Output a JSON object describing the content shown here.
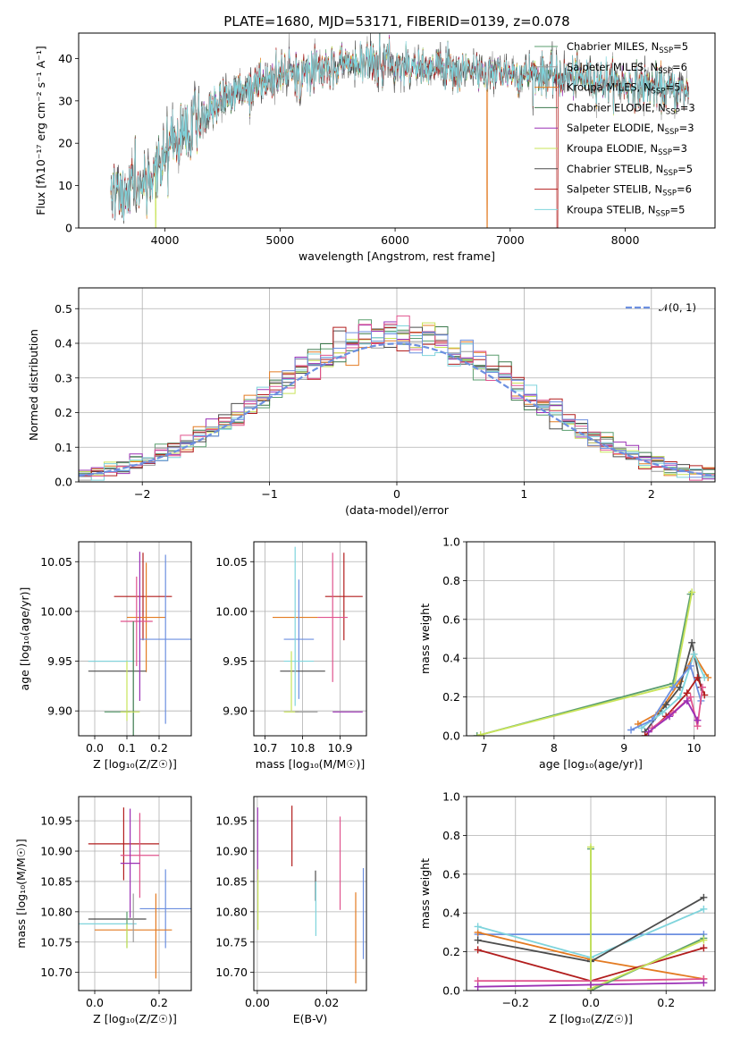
{
  "title": "PLATE=1680, MJD=53171, FIBERID=0139, z=0.078",
  "palette": [
    "#5a9e6f",
    "#9b9b9b",
    "#e37b22",
    "#3c7a4d",
    "#9b30b5",
    "#c9e45a",
    "#4d4d4d",
    "#b21d1d",
    "#7fd4dc",
    "#e0548e",
    "#6c8fe0"
  ],
  "chart_data": [
    {
      "name": "spectrum",
      "type": "line",
      "xlabel": "wavelength [Angstrom, rest frame]",
      "ylabel": "Flux [f$_\\lambda$10$^{-17}$ erg cm$^{-2}$ s$^{-1}$ A$^{-1}$]",
      "ylabel_text": "Flux [fλ10⁻¹⁷ erg cm⁻² s⁻¹ A⁻¹]",
      "xlim": [
        3250,
        8780
      ],
      "ylim": [
        0,
        46
      ],
      "xticks": [
        4000,
        5000,
        6000,
        7000,
        8000
      ],
      "yticks": [
        0,
        10,
        20,
        30,
        40
      ],
      "grid": false,
      "legend_loc": "upper right",
      "legend": [
        {
          "label": "Chabrier MILES, N",
          "sub": "SSP",
          "suffix": "=5",
          "color": "#5a9e6f"
        },
        {
          "label": "Salpeter MILES, N",
          "sub": "SSP",
          "suffix": "=6",
          "color": "#9b9b9b"
        },
        {
          "label": "Kroupa MILES, N",
          "sub": "SSP",
          "suffix": "=5",
          "color": "#e37b22"
        },
        {
          "label": "Chabrier ELODIE, N",
          "sub": "SSP",
          "suffix": "=3",
          "color": "#3c7a4d"
        },
        {
          "label": "Salpeter ELODIE, N",
          "sub": "SSP",
          "suffix": "=3",
          "color": "#9b30b5"
        },
        {
          "label": "Kroupa ELODIE, N",
          "sub": "SSP",
          "suffix": "=3",
          "color": "#c9e45a"
        },
        {
          "label": "Chabrier STELIB, N",
          "sub": "SSP",
          "suffix": "=5",
          "color": "#4d4d4d"
        },
        {
          "label": "Salpeter STELIB, N",
          "sub": "SSP",
          "suffix": "=6",
          "color": "#b21d1d"
        },
        {
          "label": "Kroupa STELIB, N",
          "sub": "SSP",
          "suffix": "=5",
          "color": "#7fd4dc"
        }
      ],
      "continuum": [
        [
          3530,
          8
        ],
        [
          3700,
          10
        ],
        [
          3900,
          13
        ],
        [
          4000,
          17
        ],
        [
          4100,
          22
        ],
        [
          4300,
          26
        ],
        [
          4500,
          31
        ],
        [
          4800,
          34
        ],
        [
          5000,
          36
        ],
        [
          5300,
          38
        ],
        [
          5600,
          39
        ],
        [
          5900,
          39
        ],
        [
          6200,
          38
        ],
        [
          6500,
          37.5
        ],
        [
          6800,
          37
        ],
        [
          7100,
          36.5
        ],
        [
          7400,
          36
        ],
        [
          7700,
          35
        ],
        [
          8000,
          34
        ],
        [
          8300,
          33
        ],
        [
          8550,
          32
        ]
      ],
      "dips": [
        [
          3934,
          -6
        ],
        [
          3969,
          -5
        ],
        [
          4102,
          -4
        ],
        [
          4304,
          -4
        ],
        [
          4861,
          -3
        ],
        [
          5175,
          -10
        ],
        [
          5270,
          -3
        ],
        [
          5890,
          -4
        ],
        [
          6563,
          -4
        ],
        [
          6800,
          -6
        ]
      ]
    },
    {
      "name": "residual-histogram",
      "type": "bar",
      "xlabel": "(data-model)/error",
      "ylabel": "Normed distribution",
      "xlim": [
        -2.5,
        2.5
      ],
      "ylim": [
        0,
        0.56
      ],
      "xticks": [
        -2,
        -1,
        0,
        1,
        2
      ],
      "yticks": [
        0.0,
        0.1,
        0.2,
        0.3,
        0.4,
        0.5
      ],
      "grid": true,
      "bin_width": 0.1,
      "gaussian_label": "$\\mathcal{N}(0,1)$",
      "gaussian_label_text": "𝒩(0, 1)",
      "gaussian_color": "#6c8fe0",
      "legend_loc": "upper right"
    },
    {
      "name": "age-vs-Z",
      "type": "scatter",
      "xlabel": "Z [log$_{10}$(Z/Z$_\\odot$)]",
      "xlabel_text": "Z [log₁₀(Z/Z☉)]",
      "ylabel": "age  [log$_{10}$(age/yr)]",
      "ylabel_text": "age  [log₁₀(age/yr)]",
      "xlim": [
        -0.05,
        0.3
      ],
      "ylim": [
        9.875,
        10.07
      ],
      "xticks": [
        0.0,
        0.1,
        0.2
      ],
      "yticks": [
        9.9,
        9.95,
        10.0,
        10.05
      ],
      "grid": true,
      "points": [
        {
          "x": 0.15,
          "y": 10.015,
          "xe": 0.09,
          "ye": 0.044,
          "color": "#b21d1d"
        },
        {
          "x": 0.16,
          "y": 9.994,
          "xe": 0.06,
          "ye": 0.055,
          "color": "#e37b22"
        },
        {
          "x": 0.13,
          "y": 9.99,
          "xe": 0.05,
          "ye": 0.045,
          "color": "#e0548e"
        },
        {
          "x": 0.22,
          "y": 9.972,
          "xe": 0.08,
          "ye": 0.085,
          "color": "#6c8fe0"
        },
        {
          "x": 0.04,
          "y": 9.95,
          "xe": 0.06,
          "ye": 0.0,
          "color": "#9b9b9b"
        },
        {
          "x": 0.05,
          "y": 9.95,
          "xe": 0.07,
          "ye": 0.0,
          "color": "#7fd4dc"
        },
        {
          "x": 0.07,
          "y": 9.94,
          "xe": 0.09,
          "ye": 0.0,
          "color": "#4d4d4d"
        },
        {
          "x": 0.14,
          "y": 9.985,
          "xe": 0.0,
          "ye": 0.075,
          "color": "#9b30b5"
        },
        {
          "x": 0.12,
          "y": 9.93,
          "xe": 0.0,
          "ye": 0.06,
          "color": "#3c7a4d"
        },
        {
          "x": 0.1,
          "y": 9.92,
          "xe": 0.0,
          "ye": 0.03,
          "color": "#c9e45a"
        },
        {
          "x": 0.07,
          "y": 9.899,
          "xe": 0.04,
          "ye": 0.0,
          "color": "#5a9e6f"
        },
        {
          "x": 0.11,
          "y": 9.899,
          "xe": 0.03,
          "ye": 0.0,
          "color": "#c9e45a"
        }
      ]
    },
    {
      "name": "age-vs-mass",
      "type": "scatter",
      "xlabel": "mass [log$_{10}$(M/M$_\\odot$)]",
      "xlabel_text": "mass [log₁₀(M/M☉)]",
      "ylabel": "",
      "xlim": [
        10.67,
        10.97
      ],
      "ylim": [
        9.875,
        10.07
      ],
      "xticks": [
        10.7,
        10.8,
        10.9
      ],
      "yticks": [
        9.9,
        9.95,
        10.0,
        10.05
      ],
      "grid": true,
      "points": [
        {
          "x": 10.78,
          "y": 9.994,
          "xe": 0.06,
          "ye": 0.0,
          "color": "#e37b22"
        },
        {
          "x": 10.91,
          "y": 10.015,
          "xe": 0.05,
          "ye": 0.044,
          "color": "#b21d1d"
        },
        {
          "x": 10.88,
          "y": 9.994,
          "xe": 0.04,
          "ye": 0.065,
          "color": "#e0548e"
        },
        {
          "x": 10.79,
          "y": 9.972,
          "xe": 0.04,
          "ye": 0.06,
          "color": "#6c8fe0"
        },
        {
          "x": 10.79,
          "y": 9.95,
          "xe": 0.04,
          "ye": 0.0,
          "color": "#7fd4dc"
        },
        {
          "x": 10.8,
          "y": 9.94,
          "xe": 0.06,
          "ye": 0.0,
          "color": "#4d4d4d"
        },
        {
          "x": 10.92,
          "y": 9.899,
          "xe": 0.04,
          "ye": 0.0,
          "color": "#9b30b5"
        },
        {
          "x": 10.77,
          "y": 9.899,
          "xe": 0.02,
          "ye": 0.0,
          "color": "#c9e45a"
        },
        {
          "x": 10.78,
          "y": 9.985,
          "xe": 0.0,
          "ye": 0.08,
          "color": "#7fd4dc"
        },
        {
          "x": 10.77,
          "y": 9.93,
          "xe": 0.0,
          "ye": 0.03,
          "color": "#c9e45a"
        },
        {
          "x": 10.81,
          "y": 9.899,
          "xe": 0.03,
          "ye": 0.0,
          "color": "#9b9b9b"
        }
      ]
    },
    {
      "name": "mass-weight-vs-age",
      "type": "line",
      "xlabel": "age  [log$_{10}$(age/yr)]",
      "xlabel_text": "age  [log₁₀(age/yr)]",
      "ylabel": "mass weight",
      "xlim": [
        6.75,
        10.3
      ],
      "ylim": [
        0,
        1.0
      ],
      "xticks": [
        7,
        8,
        9,
        10
      ],
      "yticks": [
        0.0,
        0.2,
        0.4,
        0.6,
        0.8,
        1.0
      ],
      "grid": true,
      "series": [
        {
          "color": "#5a9e6f",
          "x": [
            6.9,
            9.7,
            9.95
          ],
          "y": [
            0.0,
            0.27,
            0.73
          ]
        },
        {
          "color": "#c9e45a",
          "x": [
            6.95,
            9.72,
            9.97
          ],
          "y": [
            0.005,
            0.26,
            0.74
          ]
        },
        {
          "color": "#e37b22",
          "x": [
            9.2,
            9.5,
            9.8,
            10.0,
            10.2
          ],
          "y": [
            0.06,
            0.12,
            0.28,
            0.42,
            0.3
          ]
        },
        {
          "color": "#4d4d4d",
          "x": [
            9.3,
            9.6,
            9.8,
            9.97,
            10.1
          ],
          "y": [
            0.02,
            0.16,
            0.25,
            0.48,
            0.25
          ]
        },
        {
          "color": "#7fd4dc",
          "x": [
            9.25,
            9.55,
            9.8,
            10.0,
            10.15
          ],
          "y": [
            0.04,
            0.12,
            0.2,
            0.42,
            0.3
          ]
        },
        {
          "color": "#6c8fe0",
          "x": [
            9.1,
            9.4,
            9.7,
            9.95,
            10.1
          ],
          "y": [
            0.03,
            0.08,
            0.25,
            0.36,
            0.18
          ]
        },
        {
          "color": "#b21d1d",
          "x": [
            9.3,
            9.6,
            9.9,
            10.05,
            10.15
          ],
          "y": [
            0.0,
            0.1,
            0.22,
            0.3,
            0.21
          ]
        },
        {
          "color": "#e0548e",
          "x": [
            9.4,
            9.7,
            9.95,
            10.05,
            10.12
          ],
          "y": [
            0.04,
            0.12,
            0.2,
            0.05,
            0.25
          ]
        },
        {
          "color": "#9b30b5",
          "x": [
            9.35,
            9.65,
            9.9,
            10.05
          ],
          "y": [
            0.02,
            0.1,
            0.18,
            0.08
          ]
        }
      ]
    },
    {
      "name": "mass-vs-Z",
      "type": "scatter",
      "xlabel": "Z [log$_{10}$(Z/Z$_\\odot$)]",
      "xlabel_text": "Z [log₁₀(Z/Z☉)]",
      "ylabel": "mass [log$_{10}$(M/M$_\\odot$)]",
      "ylabel_text": "mass [log₁₀(M/M☉)]",
      "xlim": [
        -0.05,
        0.3
      ],
      "ylim": [
        10.67,
        10.99
      ],
      "xticks": [
        0.0,
        0.2
      ],
      "yticks": [
        10.7,
        10.75,
        10.8,
        10.85,
        10.9,
        10.95
      ],
      "grid": true,
      "points": [
        {
          "x": 0.09,
          "y": 10.912,
          "xe": 0.11,
          "ye": 0.06,
          "color": "#b21d1d"
        },
        {
          "x": 0.14,
          "y": 10.893,
          "xe": 0.06,
          "ye": 0.07,
          "color": "#e0548e"
        },
        {
          "x": 0.11,
          "y": 10.88,
          "xe": 0.03,
          "ye": 0.09,
          "color": "#9b30b5"
        },
        {
          "x": 0.22,
          "y": 10.805,
          "xe": 0.08,
          "ye": 0.065,
          "color": "#6c8fe0"
        },
        {
          "x": 0.07,
          "y": 10.788,
          "xe": 0.09,
          "ye": 0.0,
          "color": "#4d4d4d"
        },
        {
          "x": 0.04,
          "y": 10.78,
          "xe": 0.09,
          "ye": 0.0,
          "color": "#7fd4dc"
        },
        {
          "x": 0.12,
          "y": 10.77,
          "xe": 0.12,
          "ye": 0.0,
          "color": "#e37b22"
        },
        {
          "x": 0.1,
          "y": 10.77,
          "xe": 0.0,
          "ye": 0.03,
          "color": "#5a9e6f"
        },
        {
          "x": 0.1,
          "y": 10.76,
          "xe": 0.0,
          "ye": 0.02,
          "color": "#c9e45a"
        },
        {
          "x": 0.19,
          "y": 10.76,
          "xe": 0.0,
          "ye": 0.07,
          "color": "#e37b22"
        },
        {
          "x": 0.12,
          "y": 10.79,
          "xe": 0.0,
          "ye": 0.04,
          "color": "#9b9b9b"
        }
      ]
    },
    {
      "name": "mass-vs-EBV",
      "type": "scatter",
      "xlabel": "E(B-V)",
      "ylabel": "",
      "xlim": [
        -0.001,
        0.0315
      ],
      "ylim": [
        10.67,
        10.99
      ],
      "xticks": [
        0.0,
        0.02
      ],
      "yticks": [
        10.7,
        10.75,
        10.8,
        10.85,
        10.9,
        10.95
      ],
      "grid": true,
      "points": [
        {
          "x": 0.0001,
          "y": 10.912,
          "xe": 0.0,
          "ye": 0.06,
          "color": "#9b30b5"
        },
        {
          "x": 0.0002,
          "y": 10.82,
          "xe": 0.0,
          "ye": 0.05,
          "color": "#c9e45a"
        },
        {
          "x": 0.01,
          "y": 10.925,
          "xe": 0.0,
          "ye": 0.05,
          "color": "#b21d1d"
        },
        {
          "x": 0.0168,
          "y": 10.843,
          "xe": 0.0,
          "ye": 0.025,
          "color": "#4d4d4d"
        },
        {
          "x": 0.0169,
          "y": 10.805,
          "xe": 0.0,
          "ye": 0.045,
          "color": "#7fd4dc"
        },
        {
          "x": 0.0239,
          "y": 10.88,
          "xe": 0.0,
          "ye": 0.077,
          "color": "#e0548e"
        },
        {
          "x": 0.0284,
          "y": 10.757,
          "xe": 0.0,
          "ye": 0.075,
          "color": "#e37b22"
        },
        {
          "x": 0.0306,
          "y": 10.797,
          "xe": 0.0,
          "ye": 0.075,
          "color": "#6c8fe0"
        }
      ]
    },
    {
      "name": "mass-weight-vs-Z",
      "type": "line",
      "xlabel": "Z [log$_{10}$(Z/Z$_\\odot$)]",
      "xlabel_text": "Z [log₁₀(Z/Z☉)]",
      "ylabel": "mass weight",
      "xlim": [
        -0.33,
        0.33
      ],
      "ylim": [
        0,
        1.0
      ],
      "xticks": [
        -0.2,
        0.0,
        0.2
      ],
      "yticks": [
        0.0,
        0.2,
        0.4,
        0.6,
        0.8,
        1.0
      ],
      "grid": true,
      "series": [
        {
          "color": "#6c8fe0",
          "x": [
            -0.3,
            0.0,
            0.3
          ],
          "y": [
            0.29,
            0.29,
            0.29
          ]
        },
        {
          "color": "#e37b22",
          "x": [
            -0.3,
            0.0,
            0.3
          ],
          "y": [
            0.3,
            0.16,
            0.06
          ]
        },
        {
          "color": "#7fd4dc",
          "x": [
            -0.3,
            0.0,
            0.3
          ],
          "y": [
            0.33,
            0.17,
            0.42
          ]
        },
        {
          "color": "#4d4d4d",
          "x": [
            -0.3,
            0.0,
            0.3
          ],
          "y": [
            0.26,
            0.15,
            0.48
          ]
        },
        {
          "color": "#b21d1d",
          "x": [
            -0.3,
            0.0,
            0.3
          ],
          "y": [
            0.21,
            0.05,
            0.22
          ]
        },
        {
          "color": "#e0548e",
          "x": [
            -0.3,
            0.0,
            0.3
          ],
          "y": [
            0.05,
            0.05,
            0.06
          ]
        },
        {
          "color": "#5a9e6f",
          "x": [
            0.0,
            0.0,
            0.3
          ],
          "y": [
            0.73,
            0.0,
            0.27
          ]
        },
        {
          "color": "#c9e45a",
          "x": [
            0.0,
            0.0,
            0.3
          ],
          "y": [
            0.74,
            0.01,
            0.26
          ]
        },
        {
          "color": "#9b30b5",
          "x": [
            -0.3,
            0.0,
            0.3
          ],
          "y": [
            0.02,
            0.03,
            0.04
          ]
        }
      ]
    }
  ]
}
